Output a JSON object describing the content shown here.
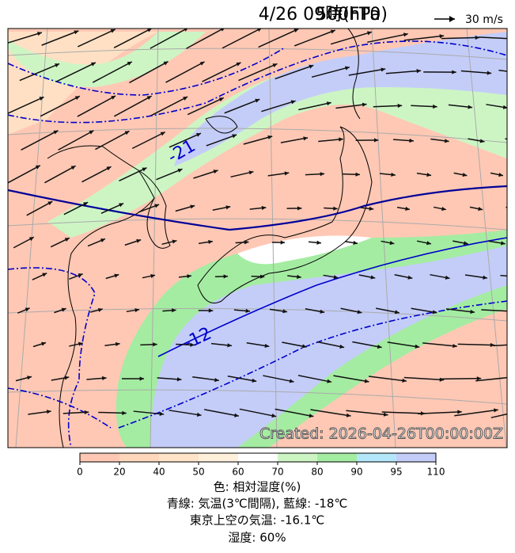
{
  "header": {
    "title": "4/26 09時(FT0)",
    "level": "500hPa"
  },
  "vector_legend": "30 m/s",
  "map": {
    "contour_labels": [
      "-21",
      "-12"
    ],
    "stamp": "Created: 2026-04-26T00:00:00Z"
  },
  "colorbar": {
    "ticks": [
      0,
      20,
      40,
      50,
      60,
      70,
      80,
      90,
      95,
      110
    ],
    "colors": [
      "#ffc8b4",
      "#ffd8bc",
      "#ffe4c8",
      "#fff0dc",
      "#ffffff",
      "#cdf5c4",
      "#a4eca2",
      "#b4e6fa",
      "#c4cdf8"
    ]
  },
  "caption": [
    "色: 相対湿度(%)",
    "青線: 気温(3℃間隔), 藍線: -18℃",
    "東京上空の気温: -16.1℃",
    "湿度: 60%"
  ]
}
